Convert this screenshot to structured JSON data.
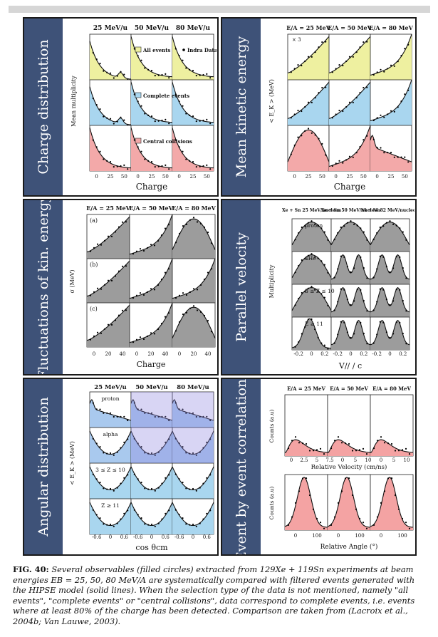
{
  "panels": [
    {
      "side": "Charge distribution",
      "cols": [
        "25 MeV/u",
        "50 MeV/u",
        "80 MeV/u"
      ],
      "ylabel": "Mean multiplicity",
      "xlabel": "Charge",
      "ticks": [
        "0",
        "25",
        "50",
        "0",
        "25",
        "50",
        "0",
        "25",
        "50"
      ],
      "legend": [
        "All events",
        "Complete events",
        "Central collisions"
      ],
      "data_label": "Indra Data"
    },
    {
      "side": "Mean kinetic energy",
      "cols": [
        "E/A = 25 MeV",
        "E/A = 50 MeV",
        "E/A = 80 MeV"
      ],
      "ylabel": "< E_K > (MeV)",
      "xlabel": "Charge",
      "ticks": [
        "0",
        "25",
        "50",
        "0",
        "25",
        "50",
        "0",
        "25",
        "50"
      ],
      "factor": "× 3"
    },
    {
      "side": "Fluctuations of kin. energy",
      "cols": [
        "E/A = 25 MeV",
        "E/A = 50 MeV",
        "E/A = 80 MeV"
      ],
      "ylabel": "σ (MeV)",
      "xlabel": "Charge",
      "rows": [
        "(a)",
        "(b)",
        "(c)"
      ],
      "ticks": [
        "0",
        "20",
        "40",
        "0",
        "20",
        "40",
        "0",
        "20",
        "40"
      ]
    },
    {
      "side": "Parallel velocity",
      "cols": [
        "Xe + Sn 25 MeV/nucleon",
        "Xe + Sn 50 MeV/nucleon",
        "Ni + Ni 82 MeV/nucleon"
      ],
      "ylabel": "Multiplicity",
      "xlabel": "V// / c",
      "rows": [
        "proton",
        "4He",
        "3 ≤ Z ≤ 10",
        "Z ≥ 11"
      ],
      "ticks": [
        "-0.2",
        "0",
        "0.2",
        "-0.2",
        "0",
        "0.2",
        "-0.2",
        "0",
        "0.2"
      ]
    },
    {
      "side": "Angular distribution",
      "cols": [
        "25 MeV/u",
        "50 MeV/u",
        "80 MeV/u"
      ],
      "ylabel": "< E_K > (MeV)",
      "xlabel": "cos θcm",
      "rows": [
        "proton",
        "alpha",
        "3 ≤ Z ≤ 10",
        "Z ≥ 11"
      ],
      "ticks": [
        "-0.6",
        "0",
        "0.6",
        "-0.6",
        "0",
        "0.6",
        "-0.6",
        "0",
        "0.6"
      ]
    },
    {
      "side": "Event by event correlations",
      "cols": [
        "E/A = 25 MeV",
        "E/A = 50 MeV",
        "E/A = 80 MeV"
      ],
      "ylabel": "Counts (a.u)",
      "xlabel_top": "Relative Velocity (cm/ns)",
      "xlabel_bottom": "Relative Angle (°)",
      "ticks_top": [
        "0",
        "2.5",
        "5",
        "7.5",
        "0",
        "5",
        "10",
        "0",
        "5",
        "10"
      ],
      "ticks_bottom": [
        "0",
        "100",
        "0",
        "100",
        "0",
        "100"
      ]
    }
  ],
  "caption": {
    "label": "FIG. 40:",
    "text": "Several observables (filled circles) extracted from 129Xe + 119Sn experiments at beam energies EB = 25, 50, 80 MeV/A are systematically compared with filtered events generated with the HIPSE model (solid lines). When the selection type of the data is not mentioned, namely \"all events\", \"complete events\" or \"central collisions\", data correspond to complete events, i.e. events where at least 80% of the charge has been detected. Comparison are taken from (Lacroix et al., 2004b; Van Lauwe, 2003)."
  }
}
